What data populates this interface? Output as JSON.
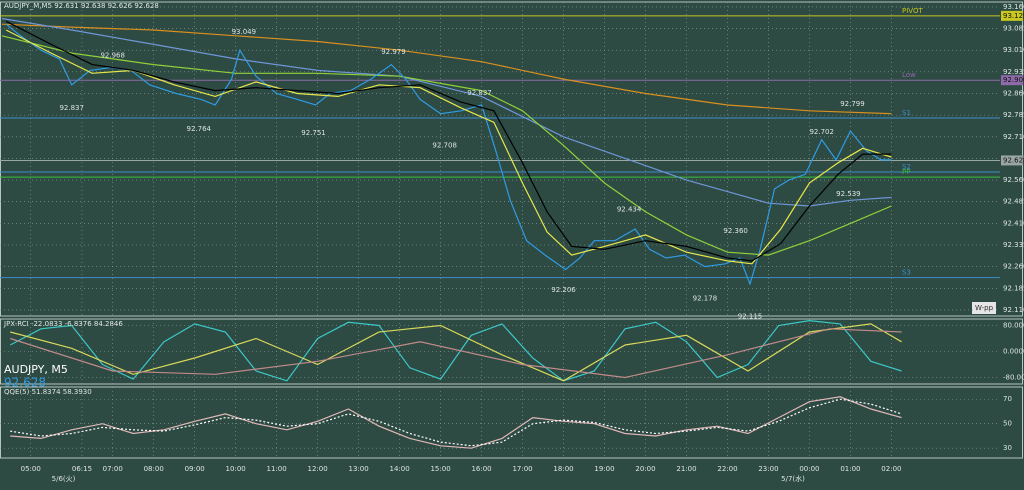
{
  "chart_data": [
    {
      "type": "line",
      "title": "AUDJPY_M,M5  92.631 92.638 92.626 92.628",
      "badge": "W-pp",
      "grid": true,
      "xlim": [
        4.25,
        28.65
      ],
      "ylim": [
        92.089,
        93.177
      ],
      "yticks": [
        {
          "value": 93.16,
          "label": "93.160"
        },
        93.085,
        {
          "value": 93.01,
          "label": "93.010"
        },
        92.935,
        {
          "value": 92.86,
          "label": "92.860"
        },
        92.785,
        {
          "value": 92.71,
          "label": "92.710"
        },
        92.635,
        {
          "value": 92.56,
          "label": "92.560"
        },
        92.485,
        {
          "value": 92.41,
          "label": "92.410"
        },
        92.335,
        {
          "value": 92.26,
          "label": "92.260"
        },
        92.185,
        {
          "value": 92.11,
          "label": "92.110"
        }
      ],
      "series": [
        {
          "color": "#d9901e",
          "x": [
            4.3,
            6,
            8,
            10,
            12,
            14,
            16,
            18,
            20,
            22,
            24,
            26
          ],
          "values": [
            93.1,
            93.09,
            93.08,
            93.06,
            93.04,
            93.01,
            92.97,
            92.91,
            92.86,
            92.82,
            92.8,
            92.79
          ]
        },
        {
          "color": "#6f97d8",
          "x": [
            4.3,
            6,
            8,
            10,
            12,
            14,
            16,
            17,
            18,
            19,
            20,
            21,
            22,
            23,
            24,
            25,
            26
          ],
          "values": [
            93.12,
            93.08,
            93.03,
            92.98,
            92.94,
            92.92,
            92.85,
            92.78,
            92.71,
            92.66,
            92.61,
            92.56,
            92.52,
            92.48,
            92.47,
            92.49,
            92.5
          ]
        },
        {
          "color": "#8fd13a",
          "x": [
            4.3,
            6,
            8,
            10,
            12,
            14,
            16,
            17,
            18,
            19,
            20,
            21,
            22,
            23,
            24,
            25,
            26
          ],
          "values": [
            93.06,
            93.0,
            92.96,
            92.93,
            92.93,
            92.92,
            92.87,
            92.8,
            92.68,
            92.55,
            92.45,
            92.37,
            92.31,
            92.3,
            92.35,
            92.41,
            92.47
          ]
        },
        {
          "color": "#2f9be3",
          "x": [
            4.4,
            4.75,
            5.25,
            5.7,
            6,
            6.45,
            6.95,
            7.45,
            7.9,
            8.55,
            9.15,
            9.5,
            9.9,
            10.1,
            10.5,
            11,
            11.5,
            11.95,
            12.3,
            12.8,
            13.3,
            13.8,
            14.15,
            14.5,
            15,
            15.5,
            16,
            16.35,
            16.7,
            17.1,
            17.55,
            18.05,
            18.4,
            18.75,
            19.25,
            19.75,
            20.1,
            20.5,
            20.95,
            21.45,
            21.95,
            22.3,
            22.55,
            22.8,
            23.15,
            23.5,
            23.9,
            24.3,
            24.65,
            25,
            25.4,
            25.75,
            26
          ],
          "values": [
            93.1,
            93.06,
            93.01,
            92.98,
            92.89,
            92.94,
            92.95,
            92.94,
            92.89,
            92.86,
            92.84,
            92.82,
            92.91,
            93.01,
            92.92,
            92.86,
            92.84,
            92.82,
            92.86,
            92.87,
            92.91,
            92.96,
            92.91,
            92.84,
            92.79,
            92.8,
            92.82,
            92.66,
            92.49,
            92.35,
            92.3,
            92.25,
            92.29,
            92.35,
            92.35,
            92.39,
            92.32,
            92.29,
            92.3,
            92.26,
            92.27,
            92.29,
            92.2,
            92.32,
            92.53,
            92.56,
            92.58,
            92.7,
            92.63,
            92.73,
            92.66,
            92.63,
            92.63
          ]
        },
        {
          "color": "#e8e84a",
          "x": [
            4.4,
            5.5,
            6.5,
            7.5,
            8.5,
            9.5,
            10.5,
            11.5,
            12.5,
            13.5,
            14.5,
            15.5,
            16.3,
            17,
            17.6,
            18.2,
            19,
            20,
            21,
            22,
            22.6,
            23.3,
            24,
            24.7,
            25.3,
            26
          ],
          "values": [
            93.08,
            93.0,
            92.93,
            92.94,
            92.89,
            92.85,
            92.9,
            92.86,
            92.85,
            92.89,
            92.88,
            92.81,
            92.76,
            92.55,
            92.38,
            92.3,
            92.33,
            92.37,
            92.31,
            92.28,
            92.27,
            92.39,
            92.55,
            92.62,
            92.67,
            92.64
          ]
        },
        {
          "color": "#000000",
          "x": [
            4.4,
            5.5,
            6.5,
            7.5,
            8.5,
            9.5,
            10.5,
            11.5,
            12.5,
            13.5,
            14.5,
            15.5,
            16.3,
            17,
            17.6,
            18.2,
            19,
            20,
            21,
            22,
            22.6,
            23.3,
            24,
            24.7,
            25.3,
            26
          ],
          "values": [
            93.11,
            93.03,
            92.96,
            92.94,
            92.9,
            92.87,
            92.88,
            92.87,
            92.86,
            92.88,
            92.89,
            92.83,
            92.8,
            92.62,
            92.45,
            92.33,
            92.32,
            92.35,
            92.33,
            92.29,
            92.28,
            92.34,
            92.47,
            92.58,
            92.65,
            92.65
          ]
        }
      ],
      "levels": [
        {
          "label": "PIVOT",
          "value": 93.129,
          "color": "#c8c820",
          "price_label": "93.129"
        },
        {
          "label": "Low",
          "value": 92.906,
          "color": "#8e6aa8",
          "price_label": "92.906"
        },
        {
          "label": "S1",
          "value": 92.775,
          "color": "#3f8ec9"
        },
        {
          "label": "S2",
          "value": 92.588,
          "color": "#3f8ec9"
        },
        {
          "label": "PP",
          "value": 92.57,
          "color": "#3fbf3f"
        },
        {
          "label": "S3",
          "value": 92.222,
          "color": "#3f8ec9"
        }
      ],
      "price_tag": {
        "value": 92.628,
        "label": "92.628"
      },
      "annotations": [
        {
          "x": 6.0,
          "value": 92.837,
          "label": "92.837"
        },
        {
          "x": 7.0,
          "value": 92.968,
          "label": "92.968"
        },
        {
          "x": 9.1,
          "value": 92.764,
          "label": "92.764"
        },
        {
          "x": 10.2,
          "value": 93.049,
          "label": "93.049"
        },
        {
          "x": 11.9,
          "value": 92.751,
          "label": "92.751"
        },
        {
          "x": 13.85,
          "value": 92.979,
          "label": "92.979"
        },
        {
          "x": 15.1,
          "value": 92.708,
          "label": "92.708"
        },
        {
          "x": 15.95,
          "value": 92.837,
          "label": "92.837"
        },
        {
          "x": 18.0,
          "value": 92.206,
          "label": "92.206"
        },
        {
          "x": 19.6,
          "value": 92.434,
          "label": "92.434"
        },
        {
          "x": 21.45,
          "value": 92.178,
          "label": "92.178"
        },
        {
          "x": 22.2,
          "value": 92.36,
          "label": "92.360"
        },
        {
          "x": 22.55,
          "value": 92.115,
          "label": "92.115"
        },
        {
          "x": 24.3,
          "value": 92.702,
          "label": "92.702"
        },
        {
          "x": 25.05,
          "value": 92.799,
          "label": "92.799"
        },
        {
          "x": 24.95,
          "value": 92.539,
          "label": "92.539"
        }
      ]
    },
    {
      "type": "line",
      "title": "JPX-RCI -22.0833 -6.8376 84.2846",
      "symbol_label": "AUDJPY, M5",
      "price_label": "92.628",
      "grid": true,
      "xlim": [
        4.25,
        28.65
      ],
      "ylim": [
        -100,
        100
      ],
      "yticks": [
        {
          "value": 80,
          "label": "80.0000"
        },
        {
          "value": 0,
          "label": "0.0000"
        },
        {
          "value": -80,
          "label": "-80.0000"
        }
      ],
      "series": [
        {
          "color": "#3cc8c8",
          "x": [
            4.5,
            5.25,
            6,
            6.75,
            7.5,
            8.25,
            9,
            9.75,
            10.5,
            11.25,
            12,
            12.75,
            13.5,
            14.25,
            15,
            15.75,
            16.5,
            17.25,
            18,
            18.75,
            19.5,
            20.25,
            21,
            21.75,
            22.5,
            23.25,
            24,
            24.75,
            25.5,
            26.25
          ],
          "values": [
            20,
            70,
            80,
            -40,
            -85,
            30,
            85,
            60,
            -60,
            -90,
            40,
            90,
            80,
            -50,
            -85,
            50,
            85,
            -20,
            -90,
            -60,
            70,
            90,
            30,
            -80,
            -40,
            80,
            95,
            85,
            -30,
            -60
          ]
        },
        {
          "color": "#d8d85a",
          "x": [
            4.5,
            6,
            7.5,
            9,
            10.5,
            12,
            13.5,
            15,
            16.5,
            18,
            19.5,
            21,
            22.5,
            24,
            25.5,
            26.25
          ],
          "values": [
            60,
            10,
            -70,
            -20,
            40,
            -40,
            60,
            80,
            -10,
            -90,
            20,
            50,
            -60,
            60,
            85,
            30
          ]
        },
        {
          "color": "#c08a8a",
          "x": [
            4.5,
            7,
            9.5,
            12,
            14.5,
            17,
            19.5,
            22,
            24.5,
            26.25
          ],
          "values": [
            40,
            -60,
            -70,
            -30,
            30,
            -40,
            -80,
            -10,
            70,
            60
          ]
        }
      ]
    },
    {
      "type": "line",
      "title": "QQE(5) 51.8374 58.3930",
      "grid": true,
      "xlim": [
        4.25,
        28.65
      ],
      "ylim": [
        22,
        80
      ],
      "yticks": [
        70,
        50,
        30
      ],
      "xticks": [
        {
          "value": 5,
          "label": "05:00"
        },
        {
          "value": 6.25,
          "label": "06:15"
        },
        {
          "value": 7,
          "label": "07:00"
        },
        {
          "value": 8,
          "label": "08:00"
        },
        {
          "value": 9,
          "label": "09:00"
        },
        {
          "value": 10,
          "label": "10:00"
        },
        {
          "value": 11,
          "label": "11:00"
        },
        {
          "value": 12,
          "label": "12:00"
        },
        {
          "value": 13,
          "label": "13:00"
        },
        {
          "value": 14,
          "label": "14:00"
        },
        {
          "value": 15,
          "label": "15:00"
        },
        {
          "value": 16,
          "label": "16:00"
        },
        {
          "value": 17,
          "label": "17:00"
        },
        {
          "value": 18,
          "label": "18:00"
        },
        {
          "value": 19,
          "label": "19:00"
        },
        {
          "value": 20,
          "label": "20:00"
        },
        {
          "value": 21,
          "label": "21:00"
        },
        {
          "value": 22,
          "label": "22:00"
        },
        {
          "value": 23,
          "label": "23:00"
        },
        {
          "value": 24,
          "label": "00:00"
        },
        {
          "value": 25,
          "label": "01:00"
        },
        {
          "value": 26,
          "label": "02:00"
        }
      ],
      "date_labels": [
        {
          "value": 5.8,
          "label": "5/6(火)"
        },
        {
          "value": 23.6,
          "label": "5/7(水)"
        }
      ],
      "series": [
        {
          "color": "#e0b8b8",
          "x": [
            4.5,
            5.25,
            6,
            6.75,
            7.5,
            8.25,
            9,
            9.75,
            10.5,
            11.25,
            12,
            12.75,
            13.5,
            14.25,
            15,
            15.75,
            16.5,
            17.25,
            18,
            18.75,
            19.5,
            20.25,
            21,
            21.75,
            22.5,
            23.25,
            24,
            24.75,
            25.5,
            26.25
          ],
          "values": [
            40,
            38,
            45,
            50,
            42,
            45,
            52,
            58,
            50,
            45,
            52,
            62,
            48,
            38,
            32,
            30,
            38,
            55,
            52,
            50,
            42,
            40,
            45,
            48,
            42,
            55,
            68,
            72,
            62,
            55
          ]
        },
        {
          "color": "#ffffff",
          "dash": true,
          "x": [
            4.5,
            5.25,
            6,
            6.75,
            7.5,
            8.25,
            9,
            9.75,
            10.5,
            11.25,
            12,
            12.75,
            13.5,
            14.25,
            15,
            15.75,
            16.5,
            17.25,
            18,
            18.75,
            19.5,
            20.25,
            21,
            21.75,
            22.5,
            23.25,
            24,
            24.75,
            25.5,
            26.25
          ],
          "values": [
            44,
            40,
            42,
            47,
            45,
            44,
            49,
            55,
            53,
            48,
            50,
            58,
            52,
            42,
            35,
            32,
            35,
            50,
            53,
            51,
            45,
            42,
            44,
            47,
            44,
            52,
            63,
            70,
            66,
            58
          ]
        }
      ]
    }
  ]
}
